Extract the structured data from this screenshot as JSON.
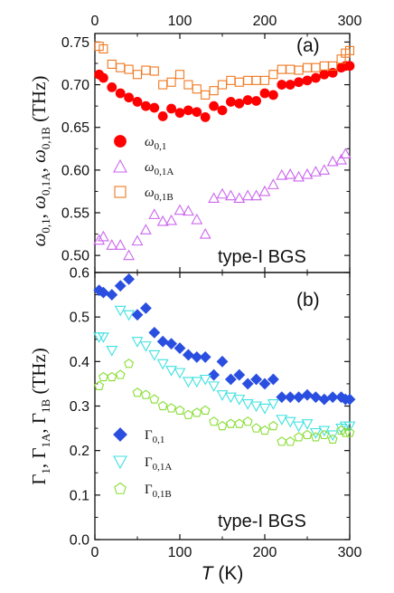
{
  "chart_data": [
    {
      "type": "scatter",
      "panel_label": "(a)",
      "annotation": "type-I BGS",
      "ylabel": "ω0,1, ω0,1A, ω0,1B (THz)",
      "xlim": [
        0,
        300
      ],
      "ylim": [
        0.48,
        0.76
      ],
      "y_ticks": [
        0.5,
        0.55,
        0.6,
        0.65,
        0.7,
        0.75
      ],
      "y_tick_labels": [
        "0.50",
        "0.55",
        "0.60",
        "0.65",
        "0.70",
        "0.75"
      ],
      "x_ticks_top": [
        0,
        100,
        200,
        300
      ],
      "x_tick_labels_top": [
        "0",
        "100",
        "200",
        "300"
      ],
      "legend_placement": "left-middle",
      "series": [
        {
          "name": "ω0,1",
          "legend_main": "ω",
          "legend_sub": "0,1",
          "marker": "circle-filled",
          "color": "#ff0000",
          "x": [
            5,
            10,
            20,
            30,
            40,
            50,
            60,
            70,
            80,
            90,
            100,
            110,
            120,
            130,
            140,
            150,
            160,
            170,
            180,
            190,
            200,
            210,
            220,
            230,
            240,
            250,
            260,
            270,
            280,
            290,
            295,
            300
          ],
          "y": [
            0.712,
            0.708,
            0.697,
            0.69,
            0.685,
            0.68,
            0.675,
            0.673,
            0.663,
            0.672,
            0.667,
            0.67,
            0.668,
            0.662,
            0.675,
            0.67,
            0.68,
            0.678,
            0.682,
            0.681,
            0.69,
            0.688,
            0.7,
            0.7,
            0.703,
            0.705,
            0.708,
            0.712,
            0.714,
            0.72,
            0.722,
            0.722
          ]
        },
        {
          "name": "ω0,1A",
          "legend_main": "ω",
          "legend_sub": "0,1A",
          "marker": "triangle-up-open",
          "color": "#cc66ee",
          "x": [
            5,
            10,
            20,
            30,
            40,
            50,
            60,
            70,
            80,
            90,
            100,
            110,
            120,
            130,
            140,
            150,
            160,
            170,
            180,
            190,
            200,
            210,
            220,
            230,
            240,
            250,
            260,
            270,
            280,
            290,
            295
          ],
          "y": [
            0.518,
            0.522,
            0.512,
            0.512,
            0.5,
            0.517,
            0.53,
            0.548,
            0.54,
            0.541,
            0.553,
            0.552,
            0.542,
            0.525,
            0.567,
            0.572,
            0.57,
            0.567,
            0.57,
            0.57,
            0.575,
            0.583,
            0.594,
            0.595,
            0.592,
            0.595,
            0.598,
            0.6,
            0.61,
            0.612,
            0.619
          ]
        },
        {
          "name": "ω0,1B",
          "legend_main": "ω",
          "legend_sub": "0,1B",
          "marker": "square-open",
          "color": "#f07820",
          "x": [
            5,
            10,
            20,
            30,
            40,
            50,
            60,
            70,
            80,
            90,
            100,
            110,
            120,
            130,
            140,
            150,
            160,
            170,
            180,
            190,
            200,
            210,
            220,
            230,
            240,
            250,
            260,
            270,
            280,
            290,
            295,
            300
          ],
          "y": [
            0.745,
            0.742,
            0.724,
            0.72,
            0.718,
            0.712,
            0.717,
            0.716,
            0.7,
            0.703,
            0.712,
            0.7,
            0.695,
            0.688,
            0.693,
            0.7,
            0.705,
            0.703,
            0.705,
            0.705,
            0.705,
            0.712,
            0.718,
            0.718,
            0.717,
            0.72,
            0.72,
            0.722,
            0.722,
            0.73,
            0.737,
            0.74
          ]
        }
      ]
    },
    {
      "type": "scatter",
      "panel_label": "(b)",
      "annotation": "type-I BGS",
      "ylabel": "Γ1, Γ1A, Γ1B (THz)",
      "xlabel": "T (K)",
      "xlim": [
        0,
        300
      ],
      "ylim": [
        0,
        0.6
      ],
      "y_ticks": [
        0.0,
        0.1,
        0.2,
        0.3,
        0.4,
        0.5,
        0.6
      ],
      "y_tick_labels": [
        "0.0",
        "0.1",
        "0.2",
        "0.3",
        "0.4",
        "0.5",
        "0.6"
      ],
      "x_ticks": [
        0,
        100,
        200,
        300
      ],
      "x_tick_labels": [
        "0",
        "100",
        "200",
        "300"
      ],
      "legend_placement": "left-bottom",
      "series": [
        {
          "name": "Γ0,1",
          "legend_main": "Γ",
          "legend_sub": "0,1",
          "marker": "diamond-filled",
          "color": "#2a4fe0",
          "x": [
            5,
            10,
            20,
            30,
            40,
            50,
            60,
            70,
            80,
            90,
            100,
            110,
            120,
            130,
            140,
            150,
            160,
            170,
            180,
            190,
            200,
            210,
            220,
            230,
            240,
            250,
            260,
            270,
            280,
            290,
            295,
            300
          ],
          "y": [
            0.56,
            0.555,
            0.55,
            0.57,
            0.585,
            0.505,
            0.52,
            0.465,
            0.445,
            0.44,
            0.43,
            0.415,
            0.41,
            0.41,
            0.37,
            0.4,
            0.36,
            0.37,
            0.35,
            0.36,
            0.35,
            0.36,
            0.32,
            0.32,
            0.32,
            0.325,
            0.32,
            0.315,
            0.32,
            0.32,
            0.315,
            0.315
          ]
        },
        {
          "name": "Γ0,1A",
          "legend_main": "Γ",
          "legend_sub": "0,1A",
          "marker": "triangle-down-open",
          "color": "#40e0e0",
          "x": [
            5,
            10,
            20,
            30,
            40,
            50,
            60,
            70,
            80,
            90,
            100,
            110,
            120,
            130,
            140,
            150,
            160,
            170,
            180,
            190,
            200,
            210,
            220,
            230,
            240,
            250,
            260,
            270,
            280,
            290,
            295,
            300
          ],
          "y": [
            0.455,
            0.455,
            0.425,
            0.515,
            0.505,
            0.445,
            0.435,
            0.415,
            0.395,
            0.38,
            0.375,
            0.355,
            0.355,
            0.36,
            0.345,
            0.325,
            0.32,
            0.315,
            0.305,
            0.3,
            0.295,
            0.305,
            0.27,
            0.265,
            0.255,
            0.26,
            0.24,
            0.245,
            0.235,
            0.25,
            0.255,
            0.255
          ]
        },
        {
          "name": "Γ0,1B",
          "legend_main": "Γ",
          "legend_sub": "0,1B",
          "marker": "pentagon-open",
          "color": "#88dd33",
          "x": [
            5,
            10,
            20,
            30,
            40,
            50,
            60,
            70,
            80,
            90,
            100,
            110,
            120,
            130,
            140,
            150,
            160,
            170,
            180,
            190,
            200,
            210,
            220,
            230,
            240,
            250,
            260,
            270,
            280,
            290,
            295,
            300
          ],
          "y": [
            0.345,
            0.365,
            0.365,
            0.37,
            0.395,
            0.33,
            0.325,
            0.315,
            0.3,
            0.295,
            0.29,
            0.28,
            0.285,
            0.29,
            0.265,
            0.255,
            0.26,
            0.26,
            0.265,
            0.25,
            0.245,
            0.255,
            0.22,
            0.22,
            0.23,
            0.235,
            0.23,
            0.235,
            0.225,
            0.245,
            0.24,
            0.24
          ]
        }
      ]
    }
  ]
}
